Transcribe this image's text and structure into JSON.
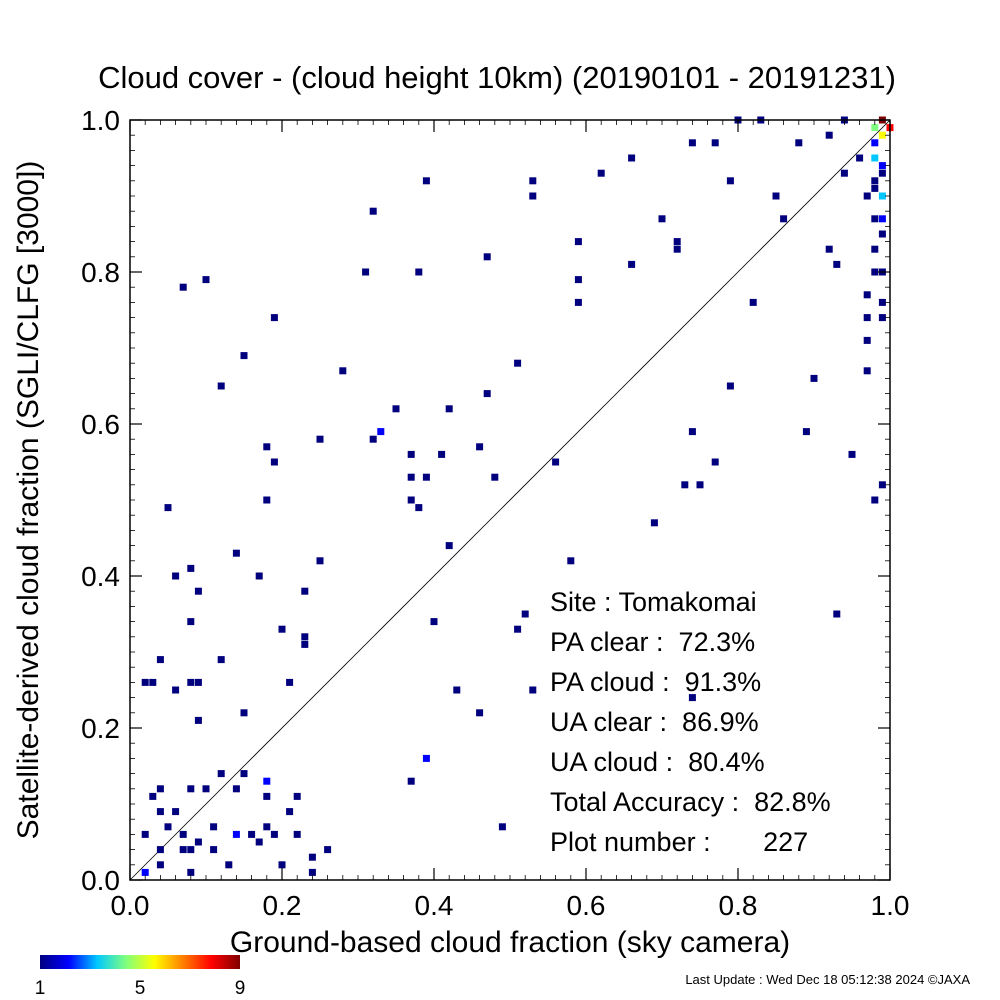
{
  "chart_data": {
    "type": "heatmap",
    "title": "Cloud cover - (cloud height 10km)  (20190101 - 20191231)",
    "xlabel": "Ground-based cloud fraction (sky camera)",
    "ylabel": "Satellite-derived cloud fraction (SGLI/CLFG [3000])",
    "xlim": [
      0.0,
      1.0
    ],
    "ylim": [
      0.0,
      1.0
    ],
    "xticks": [
      "0.0",
      "0.2",
      "0.4",
      "0.6",
      "0.8",
      "1.0"
    ],
    "yticks": [
      "0.0",
      "0.2",
      "0.4",
      "0.6",
      "0.8",
      "1.0"
    ],
    "reference_line": "y = x",
    "colorbar": {
      "min": 1,
      "max": 9,
      "tick_labels": [
        "1",
        "5",
        "9"
      ],
      "colors": [
        "#00007f",
        "#0000ff",
        "#00c8ff",
        "#7fff7f",
        "#ffff00",
        "#ff7f00",
        "#ff0000",
        "#7f0000"
      ]
    },
    "points": [
      {
        "x": 0.02,
        "y": 0.01,
        "c": 2
      },
      {
        "x": 0.02,
        "y": 0.06,
        "c": 1
      },
      {
        "x": 0.02,
        "y": 0.26,
        "c": 1
      },
      {
        "x": 0.03,
        "y": 0.26,
        "c": 1
      },
      {
        "x": 0.03,
        "y": 0.11,
        "c": 1
      },
      {
        "x": 0.04,
        "y": 0.02,
        "c": 1
      },
      {
        "x": 0.04,
        "y": 0.04,
        "c": 1
      },
      {
        "x": 0.04,
        "y": 0.09,
        "c": 1
      },
      {
        "x": 0.04,
        "y": 0.12,
        "c": 1
      },
      {
        "x": 0.04,
        "y": 0.29,
        "c": 1
      },
      {
        "x": 0.05,
        "y": 0.07,
        "c": 1
      },
      {
        "x": 0.05,
        "y": 0.49,
        "c": 1
      },
      {
        "x": 0.06,
        "y": 0.09,
        "c": 1
      },
      {
        "x": 0.06,
        "y": 0.25,
        "c": 1
      },
      {
        "x": 0.06,
        "y": 0.4,
        "c": 1
      },
      {
        "x": 0.07,
        "y": 0.04,
        "c": 1
      },
      {
        "x": 0.07,
        "y": 0.06,
        "c": 1
      },
      {
        "x": 0.07,
        "y": 0.78,
        "c": 1
      },
      {
        "x": 0.08,
        "y": 0.01,
        "c": 1
      },
      {
        "x": 0.08,
        "y": 0.04,
        "c": 1
      },
      {
        "x": 0.08,
        "y": 0.12,
        "c": 1
      },
      {
        "x": 0.08,
        "y": 0.26,
        "c": 1
      },
      {
        "x": 0.08,
        "y": 0.34,
        "c": 1
      },
      {
        "x": 0.08,
        "y": 0.41,
        "c": 1
      },
      {
        "x": 0.09,
        "y": 0.05,
        "c": 1
      },
      {
        "x": 0.09,
        "y": 0.21,
        "c": 1
      },
      {
        "x": 0.09,
        "y": 0.26,
        "c": 1
      },
      {
        "x": 0.09,
        "y": 0.38,
        "c": 1
      },
      {
        "x": 0.1,
        "y": 0.12,
        "c": 1
      },
      {
        "x": 0.1,
        "y": 0.79,
        "c": 1
      },
      {
        "x": 0.11,
        "y": 0.04,
        "c": 1
      },
      {
        "x": 0.11,
        "y": 0.07,
        "c": 1
      },
      {
        "x": 0.12,
        "y": 0.14,
        "c": 1
      },
      {
        "x": 0.12,
        "y": 0.29,
        "c": 1
      },
      {
        "x": 0.12,
        "y": 0.65,
        "c": 1
      },
      {
        "x": 0.13,
        "y": 0.02,
        "c": 1
      },
      {
        "x": 0.14,
        "y": 0.43,
        "c": 1
      },
      {
        "x": 0.14,
        "y": 0.06,
        "c": 2
      },
      {
        "x": 0.14,
        "y": 0.12,
        "c": 1
      },
      {
        "x": 0.15,
        "y": 0.14,
        "c": 1
      },
      {
        "x": 0.15,
        "y": 0.22,
        "c": 1
      },
      {
        "x": 0.15,
        "y": 0.69,
        "c": 1
      },
      {
        "x": 0.16,
        "y": 0.06,
        "c": 1
      },
      {
        "x": 0.17,
        "y": 0.05,
        "c": 1
      },
      {
        "x": 0.17,
        "y": 0.4,
        "c": 1
      },
      {
        "x": 0.18,
        "y": 0.57,
        "c": 1
      },
      {
        "x": 0.18,
        "y": 0.07,
        "c": 1
      },
      {
        "x": 0.18,
        "y": 0.11,
        "c": 1
      },
      {
        "x": 0.18,
        "y": 0.13,
        "c": 2
      },
      {
        "x": 0.18,
        "y": 0.5,
        "c": 1
      },
      {
        "x": 0.19,
        "y": 0.74,
        "c": 1
      },
      {
        "x": 0.19,
        "y": 0.55,
        "c": 1
      },
      {
        "x": 0.19,
        "y": 0.06,
        "c": 1
      },
      {
        "x": 0.2,
        "y": 0.02,
        "c": 1
      },
      {
        "x": 0.2,
        "y": 0.33,
        "c": 1
      },
      {
        "x": 0.21,
        "y": 0.09,
        "c": 1
      },
      {
        "x": 0.21,
        "y": 0.26,
        "c": 1
      },
      {
        "x": 0.22,
        "y": 0.06,
        "c": 1
      },
      {
        "x": 0.22,
        "y": 0.11,
        "c": 1
      },
      {
        "x": 0.23,
        "y": 0.31,
        "c": 1
      },
      {
        "x": 0.23,
        "y": 0.32,
        "c": 1
      },
      {
        "x": 0.23,
        "y": 0.38,
        "c": 1
      },
      {
        "x": 0.24,
        "y": 0.01,
        "c": 1
      },
      {
        "x": 0.24,
        "y": 0.03,
        "c": 1
      },
      {
        "x": 0.25,
        "y": 0.42,
        "c": 1
      },
      {
        "x": 0.25,
        "y": 0.58,
        "c": 1
      },
      {
        "x": 0.26,
        "y": 0.04,
        "c": 1
      },
      {
        "x": 0.28,
        "y": 0.67,
        "c": 1
      },
      {
        "x": 0.31,
        "y": 0.8,
        "c": 1
      },
      {
        "x": 0.32,
        "y": 0.58,
        "c": 1
      },
      {
        "x": 0.32,
        "y": 0.88,
        "c": 1
      },
      {
        "x": 0.33,
        "y": 0.59,
        "c": 2
      },
      {
        "x": 0.35,
        "y": 0.62,
        "c": 1
      },
      {
        "x": 0.37,
        "y": 0.13,
        "c": 1
      },
      {
        "x": 0.37,
        "y": 0.5,
        "c": 1
      },
      {
        "x": 0.37,
        "y": 0.53,
        "c": 1
      },
      {
        "x": 0.37,
        "y": 0.56,
        "c": 1
      },
      {
        "x": 0.38,
        "y": 0.49,
        "c": 1
      },
      {
        "x": 0.38,
        "y": 0.8,
        "c": 1
      },
      {
        "x": 0.39,
        "y": 0.16,
        "c": 2
      },
      {
        "x": 0.39,
        "y": 0.53,
        "c": 1
      },
      {
        "x": 0.39,
        "y": 0.92,
        "c": 1
      },
      {
        "x": 0.4,
        "y": 0.34,
        "c": 1
      },
      {
        "x": 0.41,
        "y": 0.56,
        "c": 1
      },
      {
        "x": 0.42,
        "y": 0.44,
        "c": 1
      },
      {
        "x": 0.42,
        "y": 0.62,
        "c": 1
      },
      {
        "x": 0.43,
        "y": 0.25,
        "c": 1
      },
      {
        "x": 0.46,
        "y": 0.22,
        "c": 1
      },
      {
        "x": 0.46,
        "y": 0.57,
        "c": 1
      },
      {
        "x": 0.47,
        "y": 0.64,
        "c": 1
      },
      {
        "x": 0.47,
        "y": 0.82,
        "c": 1
      },
      {
        "x": 0.48,
        "y": 0.53,
        "c": 1
      },
      {
        "x": 0.49,
        "y": 0.07,
        "c": 1
      },
      {
        "x": 0.51,
        "y": 0.33,
        "c": 1
      },
      {
        "x": 0.51,
        "y": 0.68,
        "c": 1
      },
      {
        "x": 0.52,
        "y": 0.35,
        "c": 1
      },
      {
        "x": 0.53,
        "y": 0.25,
        "c": 1
      },
      {
        "x": 0.53,
        "y": 0.9,
        "c": 1
      },
      {
        "x": 0.53,
        "y": 0.92,
        "c": 1
      },
      {
        "x": 0.56,
        "y": 0.55,
        "c": 1
      },
      {
        "x": 0.58,
        "y": 0.42,
        "c": 1
      },
      {
        "x": 0.59,
        "y": 0.76,
        "c": 1
      },
      {
        "x": 0.59,
        "y": 0.79,
        "c": 1
      },
      {
        "x": 0.59,
        "y": 0.84,
        "c": 1
      },
      {
        "x": 0.62,
        "y": 0.93,
        "c": 1
      },
      {
        "x": 0.66,
        "y": 0.81,
        "c": 1
      },
      {
        "x": 0.66,
        "y": 0.95,
        "c": 1
      },
      {
        "x": 0.69,
        "y": 0.47,
        "c": 1
      },
      {
        "x": 0.7,
        "y": 0.87,
        "c": 1
      },
      {
        "x": 0.72,
        "y": 0.83,
        "c": 1
      },
      {
        "x": 0.72,
        "y": 0.84,
        "c": 1
      },
      {
        "x": 0.73,
        "y": 0.52,
        "c": 1
      },
      {
        "x": 0.74,
        "y": 0.24,
        "c": 1
      },
      {
        "x": 0.74,
        "y": 0.59,
        "c": 1
      },
      {
        "x": 0.74,
        "y": 0.97,
        "c": 1
      },
      {
        "x": 0.75,
        "y": 0.52,
        "c": 1
      },
      {
        "x": 0.77,
        "y": 0.55,
        "c": 1
      },
      {
        "x": 0.77,
        "y": 0.97,
        "c": 1
      },
      {
        "x": 0.79,
        "y": 0.65,
        "c": 1
      },
      {
        "x": 0.79,
        "y": 0.92,
        "c": 1
      },
      {
        "x": 0.8,
        "y": 1.0,
        "c": 1
      },
      {
        "x": 0.82,
        "y": 0.76,
        "c": 1
      },
      {
        "x": 0.83,
        "y": 1.0,
        "c": 1
      },
      {
        "x": 0.85,
        "y": 0.9,
        "c": 1
      },
      {
        "x": 0.86,
        "y": 0.87,
        "c": 1
      },
      {
        "x": 0.88,
        "y": 0.97,
        "c": 1
      },
      {
        "x": 0.89,
        "y": 0.59,
        "c": 1
      },
      {
        "x": 0.9,
        "y": 0.66,
        "c": 1
      },
      {
        "x": 0.92,
        "y": 0.83,
        "c": 1
      },
      {
        "x": 0.92,
        "y": 0.98,
        "c": 1
      },
      {
        "x": 0.93,
        "y": 0.81,
        "c": 1
      },
      {
        "x": 0.93,
        "y": 0.35,
        "c": 1
      },
      {
        "x": 0.94,
        "y": 0.93,
        "c": 1
      },
      {
        "x": 0.94,
        "y": 1.0,
        "c": 1
      },
      {
        "x": 0.95,
        "y": 0.56,
        "c": 1
      },
      {
        "x": 0.96,
        "y": 0.95,
        "c": 1
      },
      {
        "x": 0.97,
        "y": 0.74,
        "c": 1
      },
      {
        "x": 0.97,
        "y": 0.67,
        "c": 1
      },
      {
        "x": 0.97,
        "y": 0.71,
        "c": 1
      },
      {
        "x": 0.97,
        "y": 0.77,
        "c": 1
      },
      {
        "x": 0.97,
        "y": 0.9,
        "c": 1
      },
      {
        "x": 0.98,
        "y": 0.5,
        "c": 1
      },
      {
        "x": 0.98,
        "y": 0.8,
        "c": 1
      },
      {
        "x": 0.98,
        "y": 0.83,
        "c": 1
      },
      {
        "x": 0.98,
        "y": 0.87,
        "c": 1
      },
      {
        "x": 0.98,
        "y": 0.91,
        "c": 1
      },
      {
        "x": 0.98,
        "y": 0.92,
        "c": 1
      },
      {
        "x": 0.98,
        "y": 0.95,
        "c": 3
      },
      {
        "x": 0.98,
        "y": 0.97,
        "c": 2
      },
      {
        "x": 0.98,
        "y": 0.99,
        "c": 4
      },
      {
        "x": 0.99,
        "y": 0.52,
        "c": 1
      },
      {
        "x": 0.99,
        "y": 0.74,
        "c": 1
      },
      {
        "x": 0.99,
        "y": 0.76,
        "c": 1
      },
      {
        "x": 0.99,
        "y": 0.8,
        "c": 1
      },
      {
        "x": 0.99,
        "y": 0.85,
        "c": 1
      },
      {
        "x": 0.99,
        "y": 0.87,
        "c": 2
      },
      {
        "x": 0.99,
        "y": 0.9,
        "c": 3
      },
      {
        "x": 0.99,
        "y": 0.93,
        "c": 1
      },
      {
        "x": 0.99,
        "y": 0.94,
        "c": 2
      },
      {
        "x": 0.99,
        "y": 0.98,
        "c": 6
      },
      {
        "x": 0.99,
        "y": 1.0,
        "c": 9
      },
      {
        "x": 1.0,
        "y": 0.99,
        "c": 8
      }
    ]
  },
  "stats": {
    "site": "Site : Tomakomai",
    "pa_clear": "PA clear :  72.3%",
    "pa_cloud": "PA cloud :  91.3%",
    "ua_clear": "UA clear :  86.9%",
    "ua_cloud": "UA cloud :  80.4%",
    "total_accuracy": "Total Accuracy :  82.8%",
    "plot_number": "Plot number :       227"
  },
  "footer": {
    "last_update": "Last Update : Wed Dec 18 05:12:38 2024  ©JAXA"
  }
}
